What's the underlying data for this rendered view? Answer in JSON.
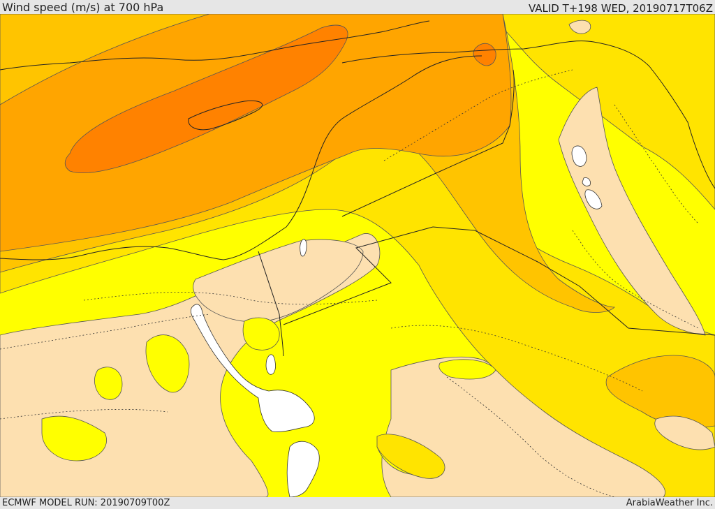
{
  "header": {
    "title": "Wind speed (m/s) at 700 hPa",
    "valid": "VALID T+198 WED, 20190717T06Z"
  },
  "footer": {
    "run": "ECMWF MODEL RUN: 20190709T00Z",
    "brand": "ArabiaWeather Inc."
  },
  "colors": {
    "calm": "#fde0b0",
    "light": "#ffff00",
    "moderate": "#ffe400",
    "fresh": "#ffc400",
    "strong": "#ffa500",
    "very_strong": "#ff8200",
    "water_white": "#ffffff",
    "contour": "#555555",
    "border": "#222222"
  }
}
